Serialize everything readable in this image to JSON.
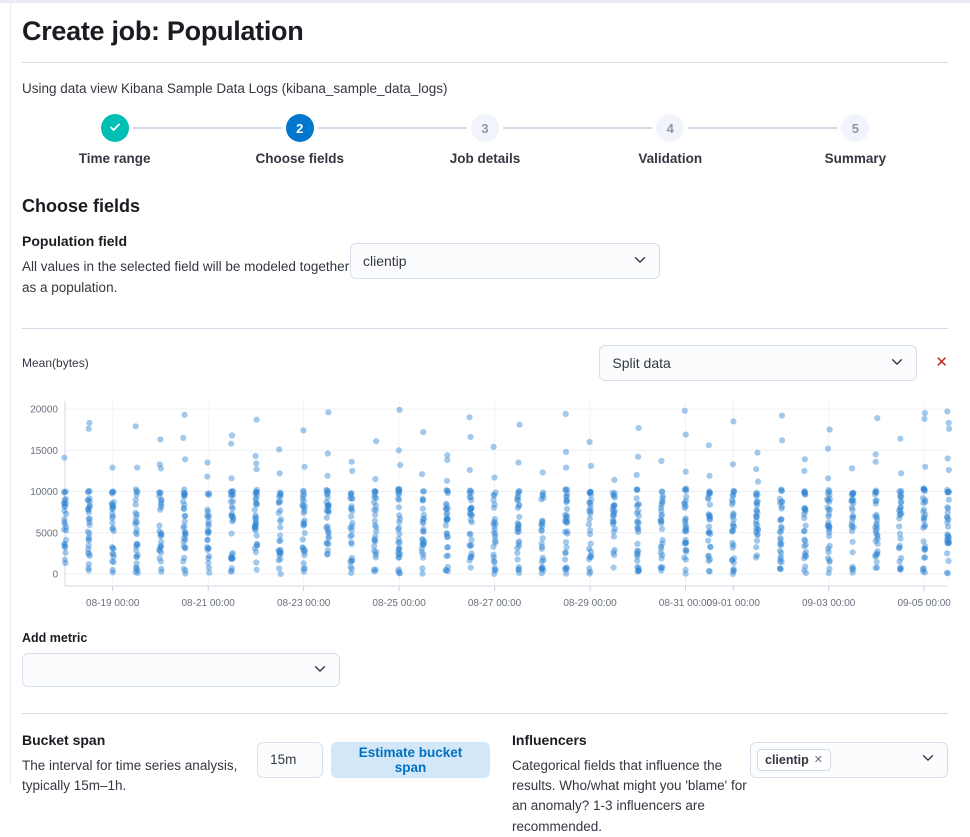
{
  "page": {
    "title": "Create job: Population",
    "subtitle": "Using data view Kibana Sample Data Logs (kibana_sample_data_logs)"
  },
  "stepper": {
    "steps": [
      {
        "label": "Time range",
        "status": "complete",
        "icon": "check-icon"
      },
      {
        "label": "Choose fields",
        "status": "active",
        "number": "2"
      },
      {
        "label": "Job details",
        "status": "future",
        "number": "3"
      },
      {
        "label": "Validation",
        "status": "future",
        "number": "4"
      },
      {
        "label": "Summary",
        "status": "future",
        "number": "5"
      }
    ]
  },
  "section": {
    "heading": "Choose fields"
  },
  "population_field": {
    "heading": "Population field",
    "description": "All values in the selected field will be modeled together as a population.",
    "selected": "clientip"
  },
  "detector": {
    "metric_label": "Mean(bytes)",
    "split_placeholder": "Split data",
    "remove_icon": "✕"
  },
  "add_metric": {
    "label": "Add metric",
    "value": ""
  },
  "bucket_span": {
    "heading": "Bucket span",
    "description": "The interval for time series analysis, typically 15m–1h.",
    "value": "15m",
    "button": "Estimate bucket span"
  },
  "influencers": {
    "heading": "Influencers",
    "description": "Categorical fields that influence the results. Who/what might you 'blame' for an anomaly? 1-3 influencers are recommended.",
    "selected": [
      "clientip"
    ],
    "remove_icon": "✕"
  },
  "colors": {
    "accent_blue": "#0077cc",
    "complete_teal": "#00bfb3",
    "danger_red": "#bd271e",
    "border": "#d3dae6"
  },
  "chart_data": {
    "type": "scatter",
    "title": "Mean(bytes)",
    "xlabel": "",
    "ylabel": "",
    "ylim": [
      0,
      20000
    ],
    "y_ticks": [
      0,
      5000,
      10000,
      15000,
      20000
    ],
    "grid": true,
    "x_start_label": "08-18 00:00",
    "x_step_hours": 12,
    "n_columns": 38,
    "x_ticks": [
      {
        "index": 2,
        "label": "08-19 00:00"
      },
      {
        "index": 6,
        "label": "08-21 00:00"
      },
      {
        "index": 10,
        "label": "08-23 00:00"
      },
      {
        "index": 14,
        "label": "08-25 00:00"
      },
      {
        "index": 18,
        "label": "08-27 00:00"
      },
      {
        "index": 22,
        "label": "08-29 00:00"
      },
      {
        "index": 26,
        "label": "08-31 00:00"
      },
      {
        "index": 28,
        "label": "09-01 00:00"
      },
      {
        "index": 32,
        "label": "09-03 00:00"
      },
      {
        "index": 36,
        "label": "09-05 00:00"
      }
    ],
    "point_color": "#3086d3",
    "point_opacity": 0.45,
    "point_radius": 3.1,
    "columns": [
      {
        "count": 24,
        "dense_min": 0,
        "dense_max": 10000,
        "outliers": [
          14100
        ]
      },
      {
        "count": 28,
        "dense_min": 0,
        "dense_max": 10200,
        "outliers": [
          18300,
          17600
        ]
      },
      {
        "count": 26,
        "dense_min": 0,
        "dense_max": 10100,
        "outliers": [
          12900
        ]
      },
      {
        "count": 27,
        "dense_min": 0,
        "dense_max": 10300,
        "outliers": [
          17900,
          12900
        ]
      },
      {
        "count": 25,
        "dense_min": 0,
        "dense_max": 10000,
        "outliers": [
          16300,
          13300,
          12800
        ]
      },
      {
        "count": 29,
        "dense_min": 0,
        "dense_max": 10250,
        "outliers": [
          19300,
          16500,
          13900
        ]
      },
      {
        "count": 24,
        "dense_min": 0,
        "dense_max": 9900,
        "outliers": [
          13500,
          11800
        ]
      },
      {
        "count": 28,
        "dense_min": 0,
        "dense_max": 10150,
        "outliers": [
          16800,
          15800,
          11600
        ]
      },
      {
        "count": 30,
        "dense_min": 0,
        "dense_max": 10300,
        "outliers": [
          18700,
          14300,
          13400,
          12700
        ]
      },
      {
        "count": 25,
        "dense_min": 0,
        "dense_max": 10000,
        "outliers": [
          15100,
          12200
        ]
      },
      {
        "count": 27,
        "dense_min": 0,
        "dense_max": 10200,
        "outliers": [
          17400,
          13000
        ]
      },
      {
        "count": 28,
        "dense_min": 0,
        "dense_max": 10350,
        "outliers": [
          19600,
          14600,
          11900
        ]
      },
      {
        "count": 24,
        "dense_min": 0,
        "dense_max": 9950,
        "outliers": [
          13600,
          12500
        ]
      },
      {
        "count": 26,
        "dense_min": 0,
        "dense_max": 10100,
        "outliers": [
          16100,
          11500
        ]
      },
      {
        "count": 29,
        "dense_min": 0,
        "dense_max": 10300,
        "outliers": [
          19900,
          15000,
          13200
        ]
      },
      {
        "count": 25,
        "dense_min": 0,
        "dense_max": 10050,
        "outliers": [
          17200,
          12100
        ]
      },
      {
        "count": 27,
        "dense_min": 0,
        "dense_max": 10200,
        "outliers": [
          14400,
          13800,
          11300
        ]
      },
      {
        "count": 28,
        "dense_min": 0,
        "dense_max": 10300,
        "outliers": [
          19000,
          16600,
          12600
        ]
      },
      {
        "count": 24,
        "dense_min": 0,
        "dense_max": 9900,
        "outliers": [
          15400,
          11700
        ]
      },
      {
        "count": 27,
        "dense_min": 0,
        "dense_max": 10150,
        "outliers": [
          18100,
          13500
        ]
      },
      {
        "count": 23,
        "dense_min": 0,
        "dense_max": 10000,
        "outliers": [
          12300
        ]
      },
      {
        "count": 29,
        "dense_min": 0,
        "dense_max": 10300,
        "outliers": [
          19400,
          14800,
          12900
        ]
      },
      {
        "count": 26,
        "dense_min": 0,
        "dense_max": 10100,
        "outliers": [
          16000,
          13100
        ]
      },
      {
        "count": 24,
        "dense_min": 0,
        "dense_max": 9950,
        "outliers": [
          11400
        ]
      },
      {
        "count": 28,
        "dense_min": 0,
        "dense_max": 10250,
        "outliers": [
          17700,
          14200,
          12000
        ]
      },
      {
        "count": 25,
        "dense_min": 0,
        "dense_max": 10000,
        "outliers": [
          13700
        ]
      },
      {
        "count": 29,
        "dense_min": 0,
        "dense_max": 10350,
        "outliers": [
          19800,
          16900,
          12400
        ]
      },
      {
        "count": 26,
        "dense_min": 0,
        "dense_max": 10100,
        "outliers": [
          15600,
          11900
        ]
      },
      {
        "count": 27,
        "dense_min": 0,
        "dense_max": 10200,
        "outliers": [
          18500,
          13300
        ]
      },
      {
        "count": 25,
        "dense_min": 0,
        "dense_max": 10000,
        "outliers": [
          14700,
          12700,
          11200
        ]
      },
      {
        "count": 28,
        "dense_min": 0,
        "dense_max": 10300,
        "outliers": [
          19200,
          16200
        ]
      },
      {
        "count": 26,
        "dense_min": 0,
        "dense_max": 10050,
        "outliers": [
          13900,
          12500
        ]
      },
      {
        "count": 28,
        "dense_min": 0,
        "dense_max": 10250,
        "outliers": [
          17500,
          15200,
          11600
        ]
      },
      {
        "count": 24,
        "dense_min": 0,
        "dense_max": 9950,
        "outliers": [
          12800
        ]
      },
      {
        "count": 29,
        "dense_min": 0,
        "dense_max": 10300,
        "outliers": [
          18900,
          14500,
          13600
        ]
      },
      {
        "count": 26,
        "dense_min": 0,
        "dense_max": 10100,
        "outliers": [
          16400,
          12200
        ]
      },
      {
        "count": 28,
        "dense_min": 0,
        "dense_max": 10350,
        "outliers": [
          19500,
          18800,
          13000
        ]
      },
      {
        "count": 27,
        "dense_min": 0,
        "dense_max": 10200,
        "outliers": [
          19700,
          18300,
          17600,
          14000,
          12600
        ]
      }
    ]
  }
}
